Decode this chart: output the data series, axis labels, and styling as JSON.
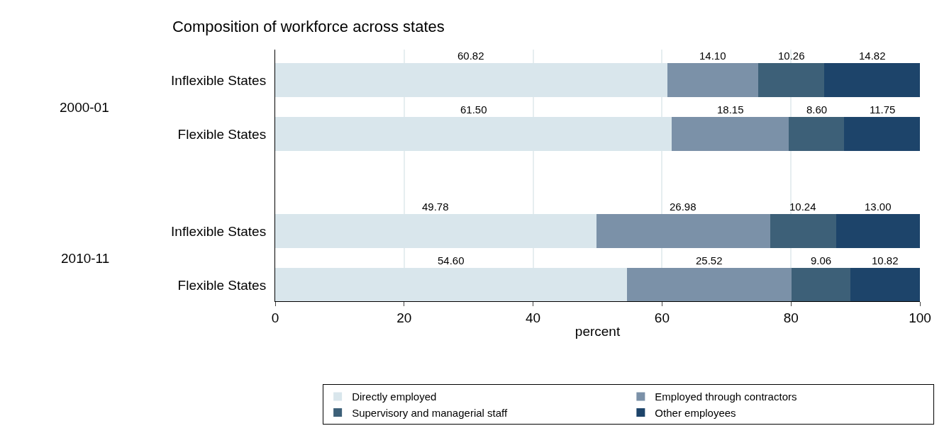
{
  "chart_data": {
    "type": "bar",
    "orientation": "horizontal",
    "stacked": true,
    "title": "Composition of workforce across states",
    "xlabel": "percent",
    "categories": [
      "Inflexible States",
      "Flexible States",
      "Inflexible States",
      "Flexible States"
    ],
    "annotations": [
      "2000-01",
      "2010-11"
    ],
    "series": [
      {
        "name": "Directly employed",
        "color": "#d9e6ec",
        "values": [
          60.82,
          61.5,
          49.78,
          54.6
        ],
        "value_labels": [
          "60.82",
          "61.50",
          "49.78",
          "54.60"
        ]
      },
      {
        "name": "Employed through contractors",
        "color": "#7b91a8",
        "values": [
          14.1,
          18.15,
          26.98,
          25.52
        ],
        "value_labels": [
          "14.10",
          "18.15",
          "26.98",
          "25.52"
        ]
      },
      {
        "name": "Supervisory and managerial staff",
        "color": "#3d6078",
        "values": [
          10.26,
          8.6,
          10.24,
          9.06
        ],
        "value_labels": [
          "10.26",
          "8.60",
          "10.24",
          "9.06"
        ]
      },
      {
        "name": "Other employees",
        "color": "#1d446a",
        "values": [
          14.82,
          11.75,
          13.0,
          10.82
        ],
        "value_labels": [
          "14.82",
          "11.75",
          "13.00",
          "10.82"
        ]
      }
    ],
    "xlim": [
      0,
      100
    ],
    "xticks": [
      0,
      20,
      40,
      60,
      80,
      100
    ],
    "grid": "x",
    "legend": "bottom"
  }
}
